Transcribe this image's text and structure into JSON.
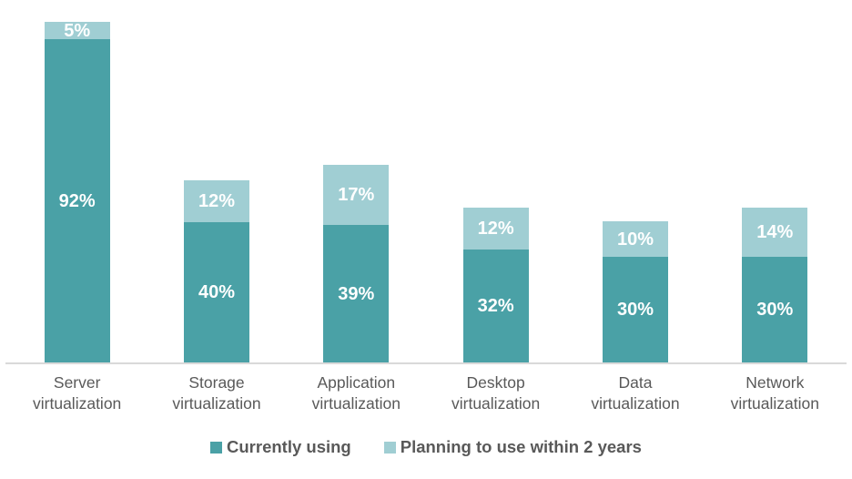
{
  "chart_data": {
    "type": "bar",
    "stacked": true,
    "orientation": "vertical",
    "categories": [
      {
        "name": "Server virtualization",
        "lines": [
          "Server",
          "virtualization"
        ]
      },
      {
        "name": "Storage virtualization",
        "lines": [
          "Storage",
          "virtualization"
        ]
      },
      {
        "name": "Application virtualization",
        "lines": [
          "Application",
          "virtualization"
        ]
      },
      {
        "name": "Desktop virtualization",
        "lines": [
          "Desktop",
          "virtualization"
        ]
      },
      {
        "name": "Data virtualization",
        "lines": [
          "Data",
          "virtualization"
        ]
      },
      {
        "name": "Network virtualization",
        "lines": [
          "Network",
          "virtualization"
        ]
      }
    ],
    "series": [
      {
        "name": "Currently using",
        "color": "#4aa1a6",
        "values": [
          92,
          40,
          39,
          32,
          30,
          30
        ],
        "labels": [
          "92%",
          "40%",
          "39%",
          "32%",
          "30%",
          "30%"
        ]
      },
      {
        "name": "Planning to use within 2 years",
        "color": "#a0ced3",
        "values": [
          5,
          12,
          17,
          12,
          10,
          14
        ],
        "labels": [
          "5%",
          "12%",
          "17%",
          "12%",
          "10%",
          "14%"
        ]
      }
    ],
    "value_unit": "%",
    "ylim": [
      0,
      100
    ],
    "grid": false,
    "axis_line_color": "#d9d9d9",
    "data_label_color": "#ffffff",
    "category_label_color": "#595959",
    "legend_position": "bottom",
    "title": ""
  }
}
